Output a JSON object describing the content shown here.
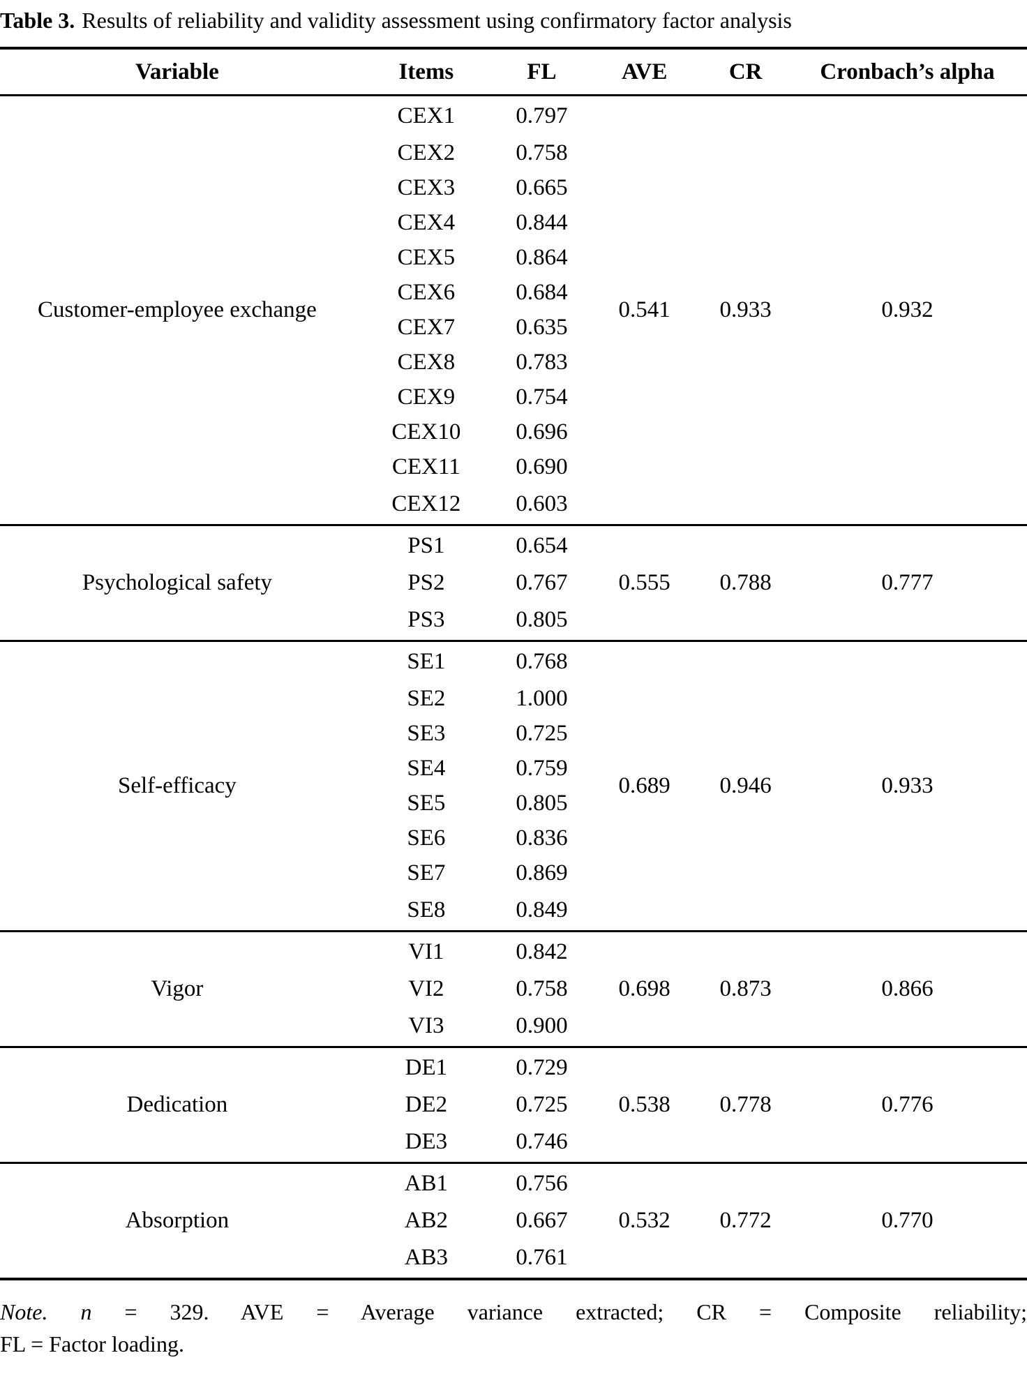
{
  "title": {
    "label": "Table 3.",
    "text": "Results of reliability and validity assessment using confirmatory factor analysis"
  },
  "table": {
    "headers": [
      "Variable",
      "Items",
      "FL",
      "AVE",
      "CR",
      "Cronbach’s alpha"
    ],
    "groups": [
      {
        "variable": "Customer-employee exchange",
        "ave": "0.541",
        "cr": "0.933",
        "alpha": "0.932",
        "items": [
          {
            "item": "CEX1",
            "fl": "0.797"
          },
          {
            "item": "CEX2",
            "fl": "0.758"
          },
          {
            "item": "CEX3",
            "fl": "0.665"
          },
          {
            "item": "CEX4",
            "fl": "0.844"
          },
          {
            "item": "CEX5",
            "fl": "0.864"
          },
          {
            "item": "CEX6",
            "fl": "0.684"
          },
          {
            "item": "CEX7",
            "fl": "0.635"
          },
          {
            "item": "CEX8",
            "fl": "0.783"
          },
          {
            "item": "CEX9",
            "fl": "0.754"
          },
          {
            "item": "CEX10",
            "fl": "0.696"
          },
          {
            "item": "CEX11",
            "fl": "0.690"
          },
          {
            "item": "CEX12",
            "fl": "0.603"
          }
        ]
      },
      {
        "variable": "Psychological safety",
        "ave": "0.555",
        "cr": "0.788",
        "alpha": "0.777",
        "items": [
          {
            "item": "PS1",
            "fl": "0.654"
          },
          {
            "item": "PS2",
            "fl": "0.767"
          },
          {
            "item": "PS3",
            "fl": "0.805"
          }
        ]
      },
      {
        "variable": "Self-efficacy",
        "ave": "0.689",
        "cr": "0.946",
        "alpha": "0.933",
        "items": [
          {
            "item": "SE1",
            "fl": "0.768"
          },
          {
            "item": "SE2",
            "fl": "1.000"
          },
          {
            "item": "SE3",
            "fl": "0.725"
          },
          {
            "item": "SE4",
            "fl": "0.759"
          },
          {
            "item": "SE5",
            "fl": "0.805"
          },
          {
            "item": "SE6",
            "fl": "0.836"
          },
          {
            "item": "SE7",
            "fl": "0.869"
          },
          {
            "item": "SE8",
            "fl": "0.849"
          }
        ]
      },
      {
        "variable": "Vigor",
        "ave": "0.698",
        "cr": "0.873",
        "alpha": "0.866",
        "items": [
          {
            "item": "VI1",
            "fl": "0.842"
          },
          {
            "item": "VI2",
            "fl": "0.758"
          },
          {
            "item": "VI3",
            "fl": "0.900"
          }
        ]
      },
      {
        "variable": "Dedication",
        "ave": "0.538",
        "cr": "0.778",
        "alpha": "0.776",
        "items": [
          {
            "item": "DE1",
            "fl": "0.729"
          },
          {
            "item": "DE2",
            "fl": "0.725"
          },
          {
            "item": "DE3",
            "fl": "0.746"
          }
        ]
      },
      {
        "variable": "Absorption",
        "ave": "0.532",
        "cr": "0.772",
        "alpha": "0.770",
        "items": [
          {
            "item": "AB1",
            "fl": "0.756"
          },
          {
            "item": "AB2",
            "fl": "0.667"
          },
          {
            "item": "AB3",
            "fl": "0.761"
          }
        ]
      }
    ]
  },
  "note": {
    "lines": [
      {
        "justify": true,
        "parts": [
          {
            "t": "Note.",
            "i": true
          },
          {
            "t": " ",
            "i": false
          },
          {
            "t": "n",
            "i": true
          },
          {
            "t": " = 329. AVE = Average variance extracted; CR = Composite reliability;",
            "i": false
          }
        ]
      },
      {
        "justify": false,
        "parts": [
          {
            "t": "FL = Factor loading.",
            "i": false
          }
        ]
      }
    ]
  }
}
